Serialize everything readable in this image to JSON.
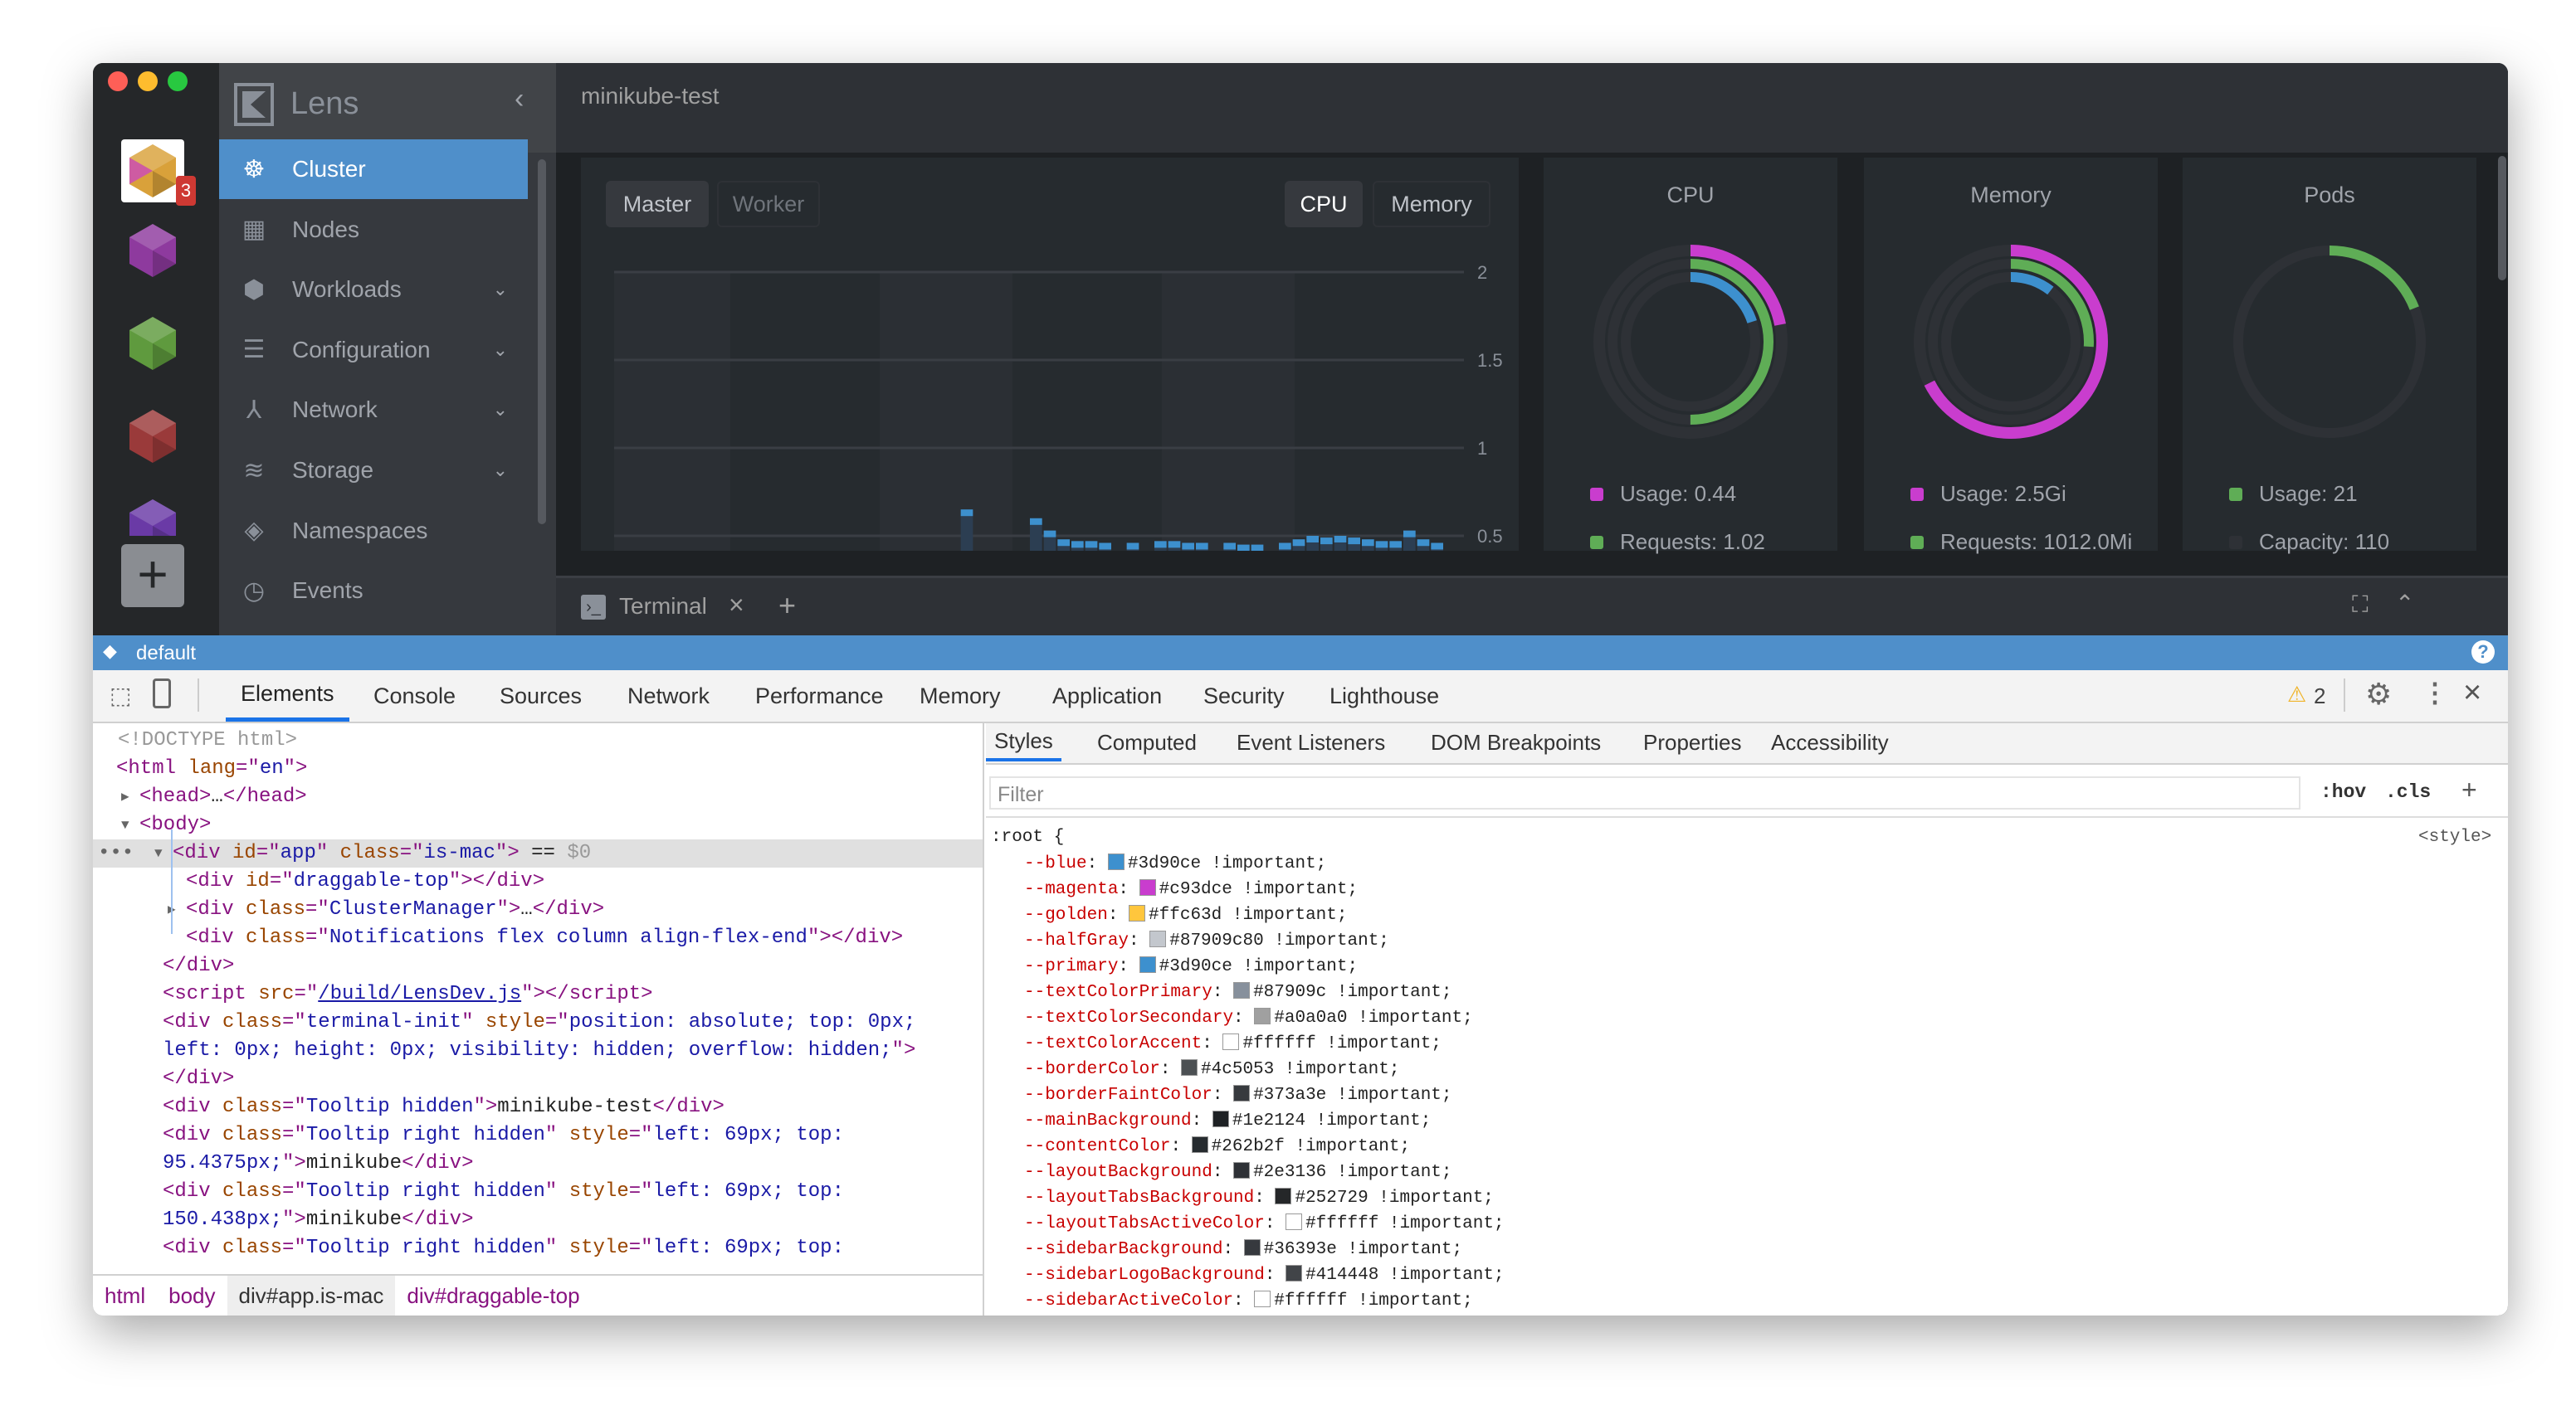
{
  "window": {
    "title": "minikube-test"
  },
  "hotbar": {
    "badge": "3",
    "add_label": "+",
    "clusters": [
      {
        "name": "minikube-test",
        "color": "#c93dce"
      },
      {
        "name": "minikube",
        "color": "#8e3a9e"
      },
      {
        "name": "minikube",
        "color": "#5f9a3e"
      },
      {
        "name": "minikube",
        "color": "#9a3a3a"
      },
      {
        "name": "minikube",
        "color": "#6a3aa6"
      }
    ]
  },
  "sidebar": {
    "app_name": "Lens",
    "items": [
      {
        "label": "Cluster",
        "icon": "helm-wheel-icon",
        "active": true,
        "expandable": false
      },
      {
        "label": "Nodes",
        "icon": "nodes-icon",
        "expandable": false
      },
      {
        "label": "Workloads",
        "icon": "workloads-icon",
        "expandable": true
      },
      {
        "label": "Configuration",
        "icon": "list-icon",
        "expandable": true
      },
      {
        "label": "Network",
        "icon": "network-icon",
        "expandable": true
      },
      {
        "label": "Storage",
        "icon": "database-icon",
        "expandable": true
      },
      {
        "label": "Namespaces",
        "icon": "layers-icon",
        "expandable": false
      },
      {
        "label": "Events",
        "icon": "clock-icon",
        "expandable": false
      }
    ]
  },
  "metrics": {
    "node_tabs": [
      "Master",
      "Worker"
    ],
    "metric_tabs": [
      "CPU",
      "Memory"
    ],
    "active_node_tab": "Master",
    "active_metric_tab": "CPU"
  },
  "chart_data": {
    "type": "bar",
    "yticks": [
      "2",
      "1.5",
      "1",
      "0.5"
    ],
    "ylim": [
      0.43,
      2
    ],
    "values": [
      null,
      null,
      null,
      null,
      null,
      null,
      null,
      null,
      null,
      null,
      null,
      null,
      null,
      null,
      null,
      null,
      null,
      null,
      null,
      null,
      null,
      null,
      null,
      null,
      null,
      0.65,
      null,
      null,
      null,
      null,
      0.6,
      0.53,
      0.48,
      0.47,
      0.47,
      0.46,
      null,
      0.46,
      null,
      0.47,
      0.47,
      0.46,
      0.46,
      null,
      0.46,
      0.45,
      0.45,
      null,
      0.46,
      0.48,
      0.5,
      0.49,
      0.5,
      0.49,
      0.48,
      0.47,
      0.47,
      0.53,
      0.48,
      0.46
    ],
    "color": "#3d90ce"
  },
  "pies": [
    {
      "title": "CPU",
      "rings": [
        {
          "fraction": 0.22,
          "color": "#c93dce"
        },
        {
          "fraction": 0.5,
          "color": "#5fad56"
        },
        {
          "fraction": 0.2,
          "color": "#3d90ce"
        }
      ],
      "legend": [
        {
          "label": "Usage: 0.44",
          "color": "#c93dce"
        },
        {
          "label": "Requests: 1.02",
          "color": "#5fad56"
        }
      ]
    },
    {
      "title": "Memory",
      "rings": [
        {
          "fraction": 0.675,
          "color": "#c93dce"
        },
        {
          "fraction": 0.26,
          "color": "#5fad56"
        },
        {
          "fraction": 0.105,
          "color": "#3d90ce"
        }
      ],
      "legend": [
        {
          "label": "Usage: 2.5Gi",
          "color": "#c93dce"
        },
        {
          "label": "Requests: 1012.0Mi",
          "color": "#5fad56"
        }
      ]
    },
    {
      "title": "Pods",
      "rings": [
        {
          "fraction": 0.19,
          "color": "#5fad56"
        }
      ],
      "legend": [
        {
          "label": "Usage: 21",
          "color": "#5fad56"
        },
        {
          "label": "Capacity: 110",
          "color": "#2e3136"
        }
      ]
    }
  ],
  "terminal": {
    "tab_label": "Terminal"
  },
  "status": {
    "namespace": "default"
  },
  "devtools": {
    "tabs": [
      "Elements",
      "Console",
      "Sources",
      "Network",
      "Performance",
      "Memory",
      "Application",
      "Security",
      "Lighthouse"
    ],
    "active_tab": "Elements",
    "warnings": "2",
    "elements": [
      [
        [
          "g",
          "<!DOCTYPE html>"
        ]
      ],
      [
        [
          "t",
          "<html "
        ],
        [
          "a",
          "lang"
        ],
        [
          "t",
          "=\""
        ],
        [
          "v",
          "en"
        ],
        [
          "t",
          "\">"
        ]
      ],
      [
        [
          "t",
          "<head>"
        ],
        [
          "x",
          "…"
        ],
        [
          "t",
          "</head>"
        ]
      ],
      [
        [
          "t",
          "<body>"
        ]
      ],
      [
        [
          "t",
          "<div "
        ],
        [
          "a",
          "id"
        ],
        [
          "t",
          "=\""
        ],
        [
          "v",
          "app"
        ],
        [
          "t",
          "\" "
        ],
        [
          "a",
          "class"
        ],
        [
          "t",
          "=\""
        ],
        [
          "v",
          "is-mac"
        ],
        [
          "t",
          "\">"
        ],
        [
          "x",
          " == "
        ],
        [
          "g",
          "$0"
        ]
      ],
      [
        [
          "t",
          "<div "
        ],
        [
          "a",
          "id"
        ],
        [
          "t",
          "=\""
        ],
        [
          "v",
          "draggable-top"
        ],
        [
          "t",
          "\"></div>"
        ]
      ],
      [
        [
          "t",
          "<div "
        ],
        [
          "a",
          "class"
        ],
        [
          "t",
          "=\""
        ],
        [
          "v",
          "ClusterManager"
        ],
        [
          "t",
          "\">"
        ],
        [
          "x",
          "…"
        ],
        [
          "t",
          "</div>"
        ]
      ],
      [
        [
          "t",
          "<div "
        ],
        [
          "a",
          "class"
        ],
        [
          "t",
          "=\""
        ],
        [
          "v",
          "Notifications flex column align-flex-end"
        ],
        [
          "t",
          "\"></div>"
        ]
      ],
      [
        [
          "t",
          "</div>"
        ]
      ],
      [
        [
          "t",
          "<script "
        ],
        [
          "a",
          "src"
        ],
        [
          "t",
          "=\""
        ],
        [
          "l",
          "/build/LensDev.js"
        ],
        [
          "t",
          "\"></script>"
        ]
      ],
      [
        [
          "t",
          "<div "
        ],
        [
          "a",
          "class"
        ],
        [
          "t",
          "=\""
        ],
        [
          "v",
          "terminal-init"
        ],
        [
          "t",
          "\" "
        ],
        [
          "a",
          "style"
        ],
        [
          "t",
          "=\""
        ],
        [
          "v",
          "position: absolute; top: 0px;"
        ]
      ],
      [
        [
          "v",
          "left: 0px; height: 0px; visibility: hidden; overflow: hidden;"
        ],
        [
          "t",
          "\">"
        ]
      ],
      [
        [
          "t",
          "</div>"
        ]
      ],
      [
        [
          "t",
          "<div "
        ],
        [
          "a",
          "class"
        ],
        [
          "t",
          "=\""
        ],
        [
          "v",
          "Tooltip hidden"
        ],
        [
          "t",
          "\">"
        ],
        [
          "x",
          "minikube-test"
        ],
        [
          "t",
          "</div>"
        ]
      ],
      [
        [
          "t",
          "<div "
        ],
        [
          "a",
          "class"
        ],
        [
          "t",
          "=\""
        ],
        [
          "v",
          "Tooltip right hidden"
        ],
        [
          "t",
          "\" "
        ],
        [
          "a",
          "style"
        ],
        [
          "t",
          "=\""
        ],
        [
          "v",
          "left: 69px; top:"
        ]
      ],
      [
        [
          "v",
          "95.4375px;"
        ],
        [
          "t",
          "\">"
        ],
        [
          "x",
          "minikube"
        ],
        [
          "t",
          "</div>"
        ]
      ],
      [
        [
          "t",
          "<div "
        ],
        [
          "a",
          "class"
        ],
        [
          "t",
          "=\""
        ],
        [
          "v",
          "Tooltip right hidden"
        ],
        [
          "t",
          "\" "
        ],
        [
          "a",
          "style"
        ],
        [
          "t",
          "=\""
        ],
        [
          "v",
          "left: 69px; top:"
        ]
      ],
      [
        [
          "v",
          "150.438px;"
        ],
        [
          "t",
          "\">"
        ],
        [
          "x",
          "minikube"
        ],
        [
          "t",
          "</div>"
        ]
      ],
      [
        [
          "t",
          "<div "
        ],
        [
          "a",
          "class"
        ],
        [
          "t",
          "=\""
        ],
        [
          "v",
          "Tooltip right hidden"
        ],
        [
          "t",
          "\" "
        ],
        [
          "a",
          "style"
        ],
        [
          "t",
          "=\""
        ],
        [
          "v",
          "left: 69px; top:"
        ]
      ]
    ],
    "breadcrumbs": [
      "html",
      "body",
      "div#app.is-mac",
      "div#draggable-top"
    ],
    "styles_tabs": [
      "Styles",
      "Computed",
      "Event Listeners",
      "DOM Breakpoints",
      "Properties",
      "Accessibility"
    ],
    "filter_placeholder": "Filter",
    "hov": ":hov",
    "cls": ".cls",
    "add": "+",
    "selector": ":root {",
    "source": "<style>",
    "rules": [
      {
        "name": "--blue",
        "value": "#3d90ce"
      },
      {
        "name": "--magenta",
        "value": "#c93dce"
      },
      {
        "name": "--golden",
        "value": "#ffc63d"
      },
      {
        "name": "--halfGray",
        "value": "#87909c80"
      },
      {
        "name": "--primary",
        "value": "#3d90ce"
      },
      {
        "name": "--textColorPrimary",
        "value": "#87909c"
      },
      {
        "name": "--textColorSecondary",
        "value": "#a0a0a0"
      },
      {
        "name": "--textColorAccent",
        "value": "#ffffff"
      },
      {
        "name": "--borderColor",
        "value": "#4c5053"
      },
      {
        "name": "--borderFaintColor",
        "value": "#373a3e"
      },
      {
        "name": "--mainBackground",
        "value": "#1e2124"
      },
      {
        "name": "--contentColor",
        "value": "#262b2f"
      },
      {
        "name": "--layoutBackground",
        "value": "#2e3136"
      },
      {
        "name": "--layoutTabsBackground",
        "value": "#252729"
      },
      {
        "name": "--layoutTabsActiveColor",
        "value": "#ffffff"
      },
      {
        "name": "--sidebarBackground",
        "value": "#36393e"
      },
      {
        "name": "--sidebarLogoBackground",
        "value": "#414448"
      },
      {
        "name": "--sidebarActiveColor",
        "value": "#ffffff"
      }
    ],
    "important": " !important;"
  }
}
